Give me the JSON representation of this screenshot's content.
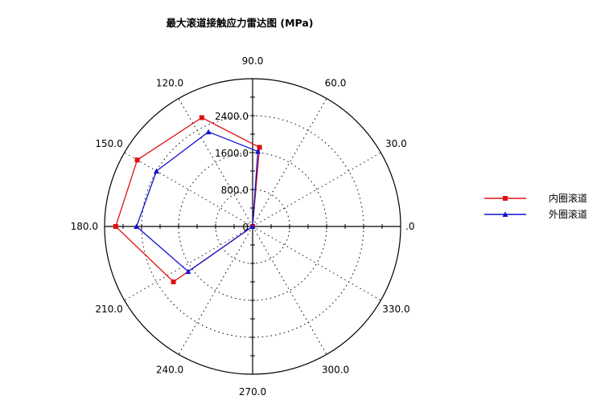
{
  "chart_data": {
    "type": "polar",
    "title": "最大滚道接触应力雷达图 (MPa)",
    "radial_axis": {
      "min": 0,
      "max": 3200,
      "tick_labels": [
        "0",
        "800.0",
        "1600.0",
        "2400.0"
      ],
      "tick_values": [
        0,
        800,
        1600,
        2400
      ],
      "label_angle_deg": 90
    },
    "angular_axis": {
      "tick_labels": [
        ".0",
        "30.0",
        "60.0",
        "90.0",
        "120.0",
        "150.0",
        "180.0",
        "210.0",
        "240.0",
        "270.0",
        "300.0",
        "330.0"
      ],
      "tick_values": [
        0,
        30,
        60,
        90,
        120,
        150,
        180,
        210,
        240,
        270,
        300,
        330
      ],
      "unit": "deg"
    },
    "grid": true,
    "legend_position": "right",
    "series": [
      {
        "name": "内圈滚道",
        "color": "#e01010",
        "marker": "square",
        "points": [
          {
            "theta": 0,
            "r": 0
          },
          {
            "theta": 85,
            "r": 1720
          },
          {
            "theta": 115,
            "r": 2600
          },
          {
            "theta": 150,
            "r": 2880
          },
          {
            "theta": 180,
            "r": 2960
          },
          {
            "theta": 215,
            "r": 2090
          },
          {
            "theta": 0,
            "r": 0
          }
        ]
      },
      {
        "name": "外圈滚道",
        "color": "#1010d0",
        "marker": "triangle",
        "points": [
          {
            "theta": 0,
            "r": 0
          },
          {
            "theta": 86,
            "r": 1630
          },
          {
            "theta": 115,
            "r": 2260
          },
          {
            "theta": 150,
            "r": 2400
          },
          {
            "theta": 180,
            "r": 2510
          },
          {
            "theta": 215,
            "r": 1700
          },
          {
            "theta": 0,
            "r": 0
          }
        ]
      }
    ]
  }
}
